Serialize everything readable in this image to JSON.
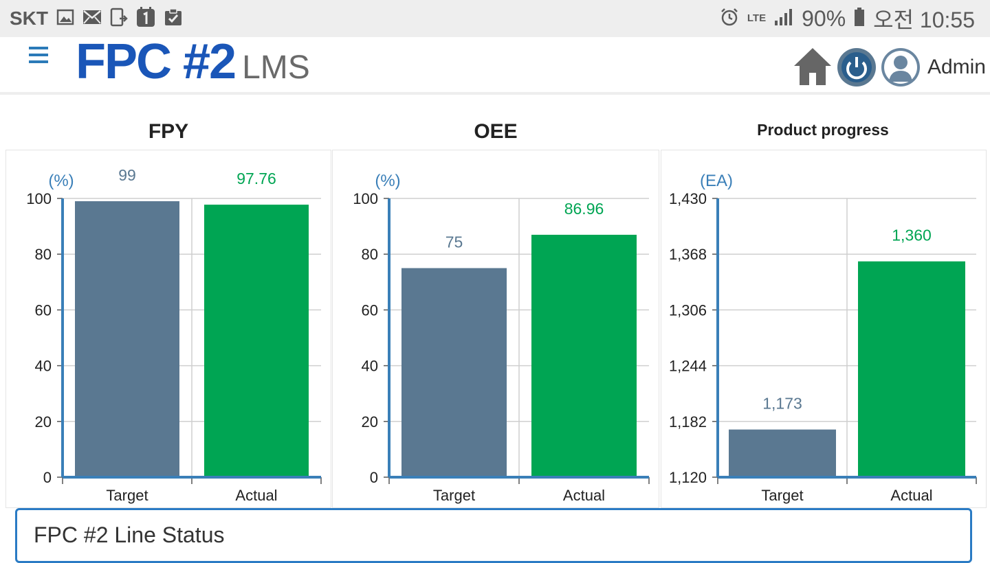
{
  "status_bar": {
    "carrier": "SKT",
    "network": "LTE",
    "battery": "90%",
    "time": "오전 10:55",
    "icons": [
      "image-icon",
      "mail-icon",
      "cast-icon",
      "calendar-one-icon",
      "clipboard-check-icon",
      "alarm-icon",
      "signal-icon",
      "battery-icon"
    ]
  },
  "header": {
    "logo_main": "FPC #2",
    "logo_sub": "LMS",
    "user": "Admin",
    "icons": [
      "menu-icon",
      "home-icon",
      "power-icon",
      "user-icon"
    ]
  },
  "colors": {
    "target": "#5a7891",
    "actual": "#00a553",
    "axis": "#3a7fb8",
    "target_label": "#5a7891",
    "actual_label": "#00a553"
  },
  "chart_data": [
    {
      "type": "bar",
      "title": "FPY",
      "unit": "(%)",
      "categories": [
        "Target",
        "Actual"
      ],
      "values": [
        99,
        97.76
      ],
      "value_labels": [
        "99",
        "97.76"
      ],
      "yticks": [
        0,
        20,
        40,
        60,
        80,
        100
      ],
      "ytick_labels": [
        "0",
        "20",
        "40",
        "60",
        "80",
        "100"
      ],
      "ylim": [
        0,
        100
      ],
      "grid": true
    },
    {
      "type": "bar",
      "title": "OEE",
      "unit": "(%)",
      "categories": [
        "Target",
        "Actual"
      ],
      "values": [
        75,
        86.96
      ],
      "value_labels": [
        "75",
        "86.96"
      ],
      "yticks": [
        0,
        20,
        40,
        60,
        80,
        100
      ],
      "ytick_labels": [
        "0",
        "20",
        "40",
        "60",
        "80",
        "100"
      ],
      "ylim": [
        0,
        100
      ],
      "grid": true
    },
    {
      "type": "bar",
      "title": "Product progress",
      "unit": "(EA)",
      "categories": [
        "Target",
        "Actual"
      ],
      "values": [
        1173,
        1360
      ],
      "value_labels": [
        "1,173",
        "1,360"
      ],
      "yticks": [
        1120,
        1182,
        1244,
        1306,
        1368,
        1430
      ],
      "ytick_labels": [
        "1,120",
        "1,182",
        "1,244",
        "1,306",
        "1,368",
        "1,430"
      ],
      "ylim": [
        1120,
        1430
      ],
      "grid": true
    }
  ],
  "line_status": {
    "title": "FPC #2 Line Status"
  }
}
